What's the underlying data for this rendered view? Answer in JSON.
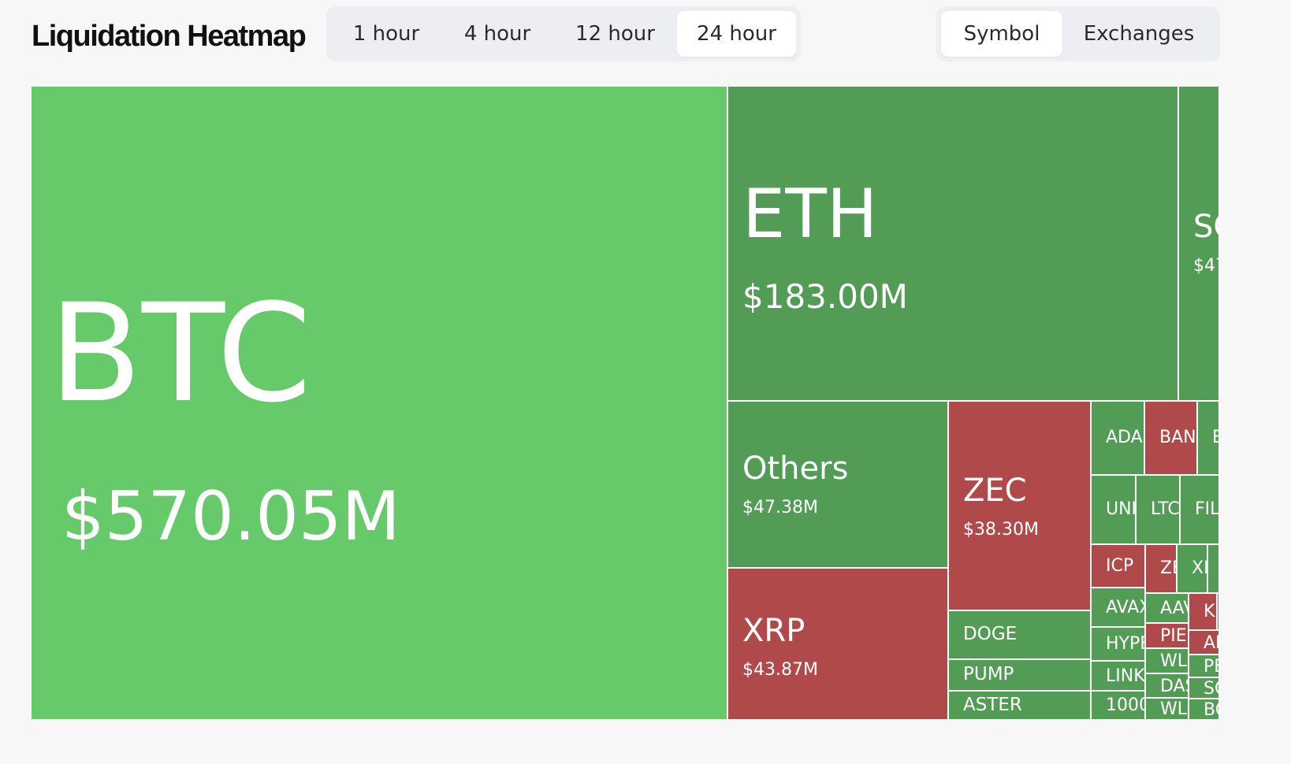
{
  "header": {
    "title": "Liquidation Heatmap",
    "time_ranges": [
      {
        "label": "1 hour",
        "active": false
      },
      {
        "label": "4 hour",
        "active": false
      },
      {
        "label": "12 hour",
        "active": false
      },
      {
        "label": "24 hour",
        "active": true
      }
    ],
    "views": [
      {
        "label": "Symbol",
        "active": true
      },
      {
        "label": "Exchanges",
        "active": false
      }
    ]
  },
  "colors": {
    "bright_green": "#66c96a",
    "green": "#529c56",
    "red": "#b04a4a"
  },
  "heatmap": {
    "tiles": [
      {
        "symbol": "BTC",
        "amount": "$570.05M",
        "tone": "bright_green"
      },
      {
        "symbol": "ETH",
        "amount": "$183.00M",
        "tone": "green"
      },
      {
        "symbol": "SO",
        "amount": "$47",
        "tone": "green"
      },
      {
        "symbol": "Others",
        "amount": "$47.38M",
        "tone": "green"
      },
      {
        "symbol": "XRP",
        "amount": "$43.87M",
        "tone": "red"
      },
      {
        "symbol": "ZEC",
        "amount": "$38.30M",
        "tone": "red"
      },
      {
        "symbol": "DOGE",
        "amount": "",
        "tone": "green"
      },
      {
        "symbol": "PUMP",
        "amount": "",
        "tone": "green"
      },
      {
        "symbol": "ASTER",
        "amount": "",
        "tone": "green"
      },
      {
        "symbol": "ADA",
        "amount": "",
        "tone": "green"
      },
      {
        "symbol": "BAN",
        "amount": "",
        "tone": "red"
      },
      {
        "symbol": "E",
        "amount": "",
        "tone": "green"
      },
      {
        "symbol": "UNI",
        "amount": "",
        "tone": "green"
      },
      {
        "symbol": "LTC",
        "amount": "",
        "tone": "green"
      },
      {
        "symbol": "FIL",
        "amount": "",
        "tone": "green"
      },
      {
        "symbol": "ICP",
        "amount": "",
        "tone": "red"
      },
      {
        "symbol": "ZE",
        "amount": "",
        "tone": "red"
      },
      {
        "symbol": "XI",
        "amount": "",
        "tone": "green"
      },
      {
        "symbol": "",
        "amount": "",
        "tone": "green"
      },
      {
        "symbol": "AVAX",
        "amount": "",
        "tone": "green"
      },
      {
        "symbol": "AAV",
        "amount": "",
        "tone": "green"
      },
      {
        "symbol": "K",
        "amount": "",
        "tone": "red"
      },
      {
        "symbol": "",
        "amount": "",
        "tone": "green"
      },
      {
        "symbol": "HYPE",
        "amount": "",
        "tone": "green"
      },
      {
        "symbol": "PIE",
        "amount": "",
        "tone": "red"
      },
      {
        "symbol": "AI",
        "amount": "",
        "tone": "red"
      },
      {
        "symbol": "WL",
        "amount": "",
        "tone": "green"
      },
      {
        "symbol": "PE",
        "amount": "",
        "tone": "green"
      },
      {
        "symbol": "LINK",
        "amount": "",
        "tone": "green"
      },
      {
        "symbol": "DAS",
        "amount": "",
        "tone": "green"
      },
      {
        "symbol": "SO",
        "amount": "",
        "tone": "green"
      },
      {
        "symbol": "1000",
        "amount": "",
        "tone": "green"
      },
      {
        "symbol": "WL",
        "amount": "",
        "tone": "green"
      },
      {
        "symbol": "BO",
        "amount": "",
        "tone": "green"
      }
    ]
  }
}
